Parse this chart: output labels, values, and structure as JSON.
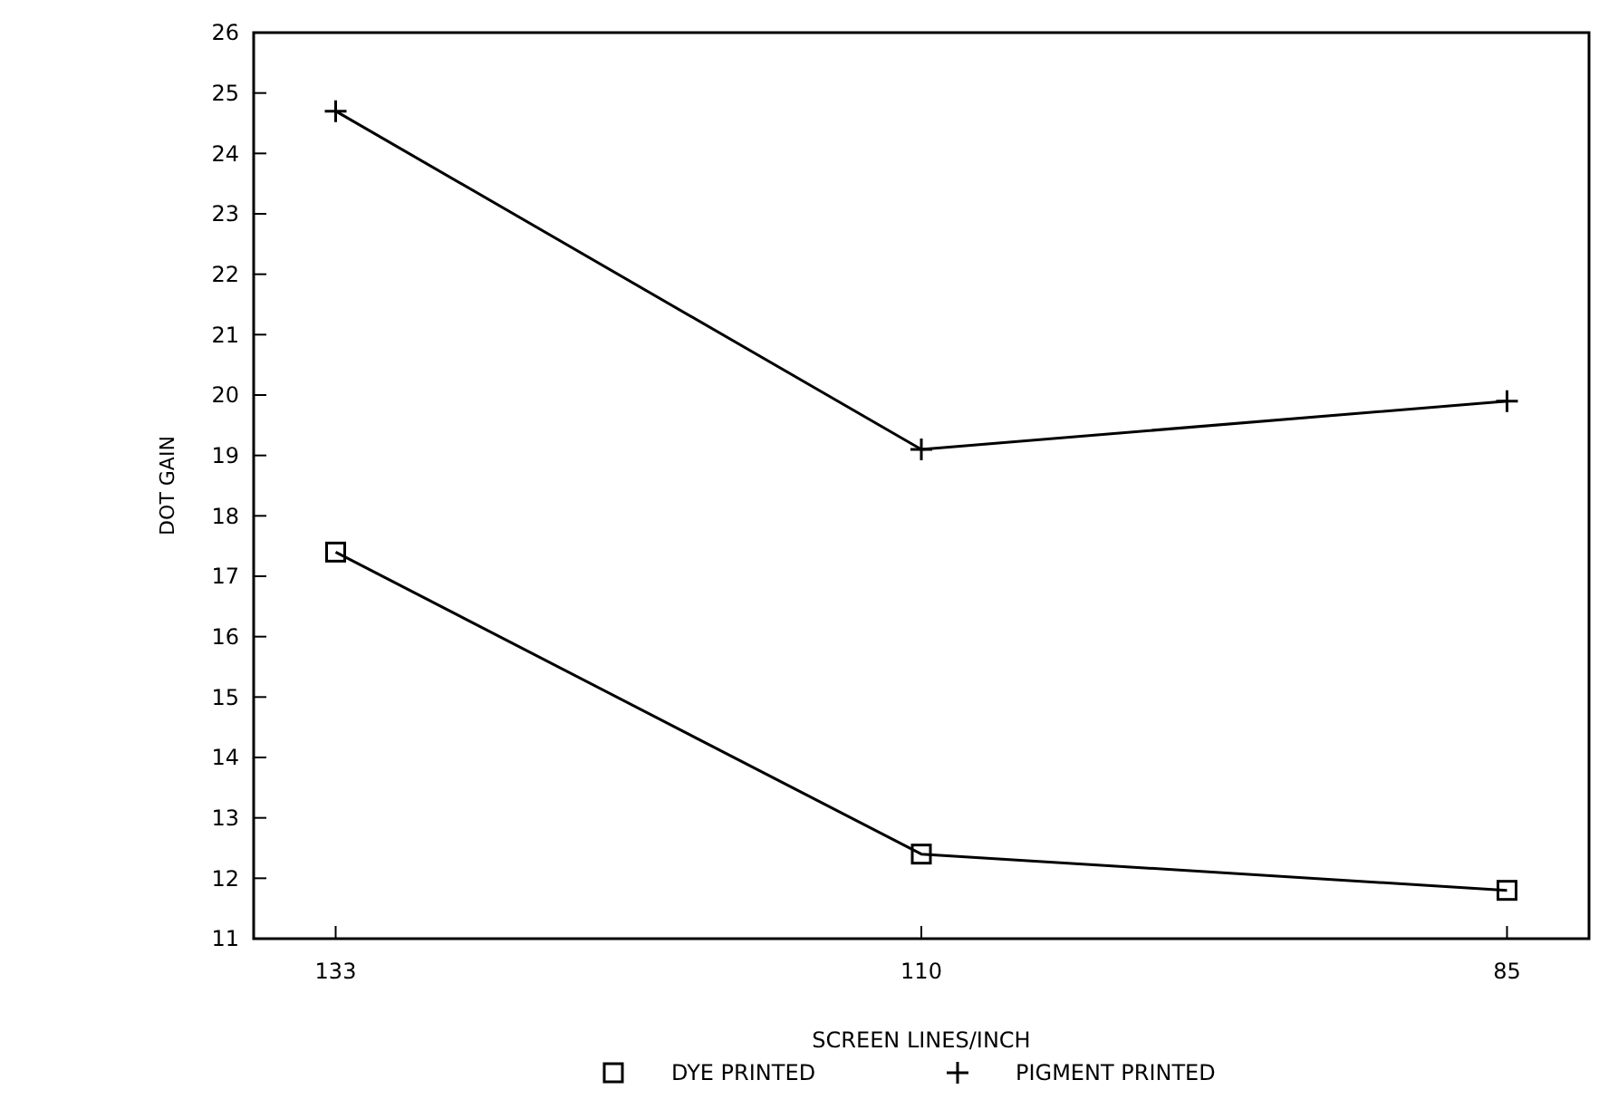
{
  "chart_data": {
    "type": "line",
    "xlabel": "SCREEN LINES/INCH",
    "ylabel": "DOT GAIN",
    "categories": [
      "133",
      "110",
      "85"
    ],
    "series": [
      {
        "name": "DYE PRINTED",
        "color": "#000000",
        "marker": "square",
        "values": [
          17.4,
          12.4,
          11.8
        ]
      },
      {
        "name": "PIGMENT PRINTED",
        "color": "#000000",
        "marker": "cross",
        "values": [
          24.7,
          19.1,
          19.9
        ]
      }
    ],
    "ylim": [
      11,
      26
    ],
    "yticks": [
      11,
      12,
      13,
      14,
      15,
      16,
      17,
      18,
      19,
      20,
      21,
      22,
      23,
      24,
      25,
      26
    ],
    "legend": "bottom",
    "line_style": "solid",
    "grid": false
  }
}
